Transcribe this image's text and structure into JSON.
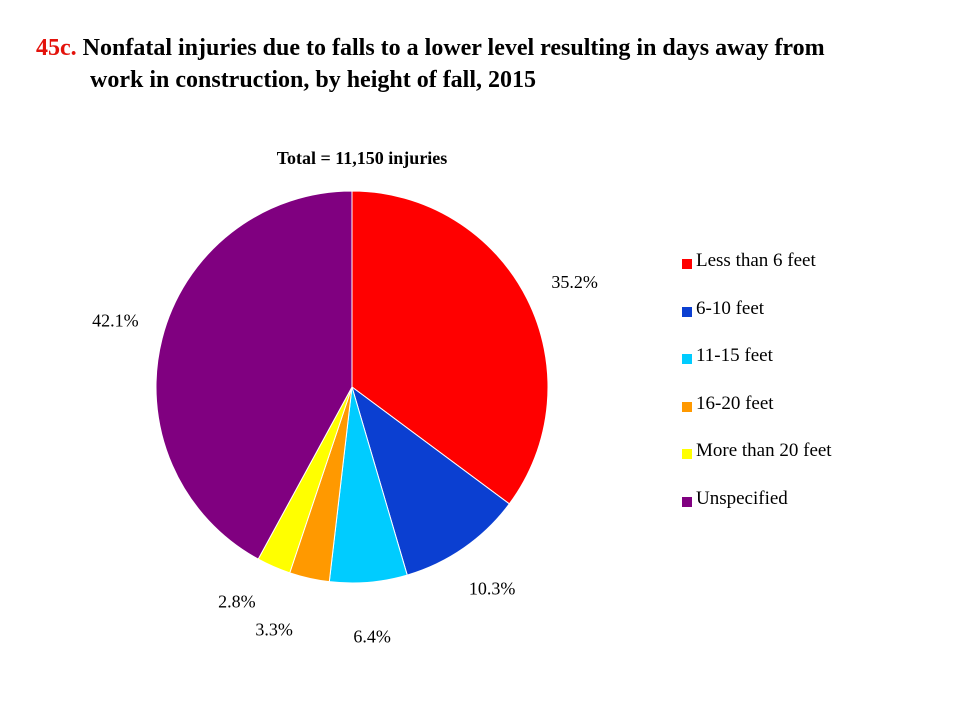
{
  "title": {
    "number": "45c.",
    "line1": "Nonfatal injuries due to falls to a lower level resulting in days away from",
    "line2": "work in construction, by height of fall, 2015"
  },
  "chart_data": {
    "type": "pie",
    "subtitle": "Total = 11,150 injuries",
    "legend_position": "right",
    "slices": [
      {
        "label": "Less than 6 feet",
        "value": 35.2,
        "value_label": "35.2%",
        "color": "#ff0000"
      },
      {
        "label": "6-10 feet",
        "value": 10.3,
        "value_label": "10.3%",
        "color": "#0b3fd1"
      },
      {
        "label": "11-15 feet",
        "value": 6.4,
        "value_label": "6.4%",
        "color": "#00ccff"
      },
      {
        "label": "16-20 feet",
        "value": 3.3,
        "value_label": "3.3%",
        "color": "#ff9900"
      },
      {
        "label": "More than 20 feet",
        "value": 2.8,
        "value_label": "2.8%",
        "color": "#ffff00"
      },
      {
        "label": "Unspecified",
        "value": 42.1,
        "value_label": "42.1%",
        "color": "#800080"
      }
    ]
  }
}
